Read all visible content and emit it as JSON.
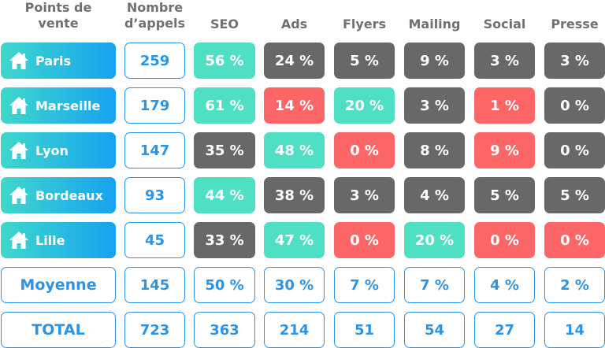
{
  "headers": [
    "Points de\nvente",
    "Nombre\nd’appels",
    "SEO",
    "Ads",
    "Flyers",
    "Mailing",
    "Social",
    "Presse"
  ],
  "colors": {
    "gray": "#686868",
    "green": "#4fe0c3",
    "red": "#fd6667",
    "blue": "#2c94e6",
    "header_text": "#707070",
    "city_gradient_start": "#3ed8cc",
    "city_gradient_end": "#17a2f0"
  },
  "city_icon": "home-icon",
  "rows": [
    {
      "city": "Paris",
      "calls": "259",
      "cells": [
        {
          "v": "56 %",
          "c": "green"
        },
        {
          "v": "24 %",
          "c": "gray"
        },
        {
          "v": "5 %",
          "c": "gray"
        },
        {
          "v": "9 %",
          "c": "gray"
        },
        {
          "v": "3 %",
          "c": "gray"
        },
        {
          "v": "3 %",
          "c": "gray"
        }
      ]
    },
    {
      "city": "Marseille",
      "calls": "179",
      "cells": [
        {
          "v": "61 %",
          "c": "green"
        },
        {
          "v": "14 %",
          "c": "red"
        },
        {
          "v": "20 %",
          "c": "green"
        },
        {
          "v": "3 %",
          "c": "gray"
        },
        {
          "v": "1 %",
          "c": "red"
        },
        {
          "v": "0 %",
          "c": "gray"
        }
      ]
    },
    {
      "city": "Lyon",
      "calls": "147",
      "cells": [
        {
          "v": "35 %",
          "c": "gray"
        },
        {
          "v": "48 %",
          "c": "green"
        },
        {
          "v": "0 %",
          "c": "red"
        },
        {
          "v": "8 %",
          "c": "gray"
        },
        {
          "v": "9 %",
          "c": "red"
        },
        {
          "v": "0 %",
          "c": "gray"
        }
      ]
    },
    {
      "city": "Bordeaux",
      "calls": "93",
      "cells": [
        {
          "v": "44 %",
          "c": "green"
        },
        {
          "v": "38 %",
          "c": "gray"
        },
        {
          "v": "3 %",
          "c": "gray"
        },
        {
          "v": "4 %",
          "c": "gray"
        },
        {
          "v": "5 %",
          "c": "gray"
        },
        {
          "v": "5 %",
          "c": "gray"
        }
      ]
    },
    {
      "city": "Lille",
      "calls": "45",
      "cells": [
        {
          "v": "33 %",
          "c": "gray"
        },
        {
          "v": "47 %",
          "c": "green"
        },
        {
          "v": "0 %",
          "c": "red"
        },
        {
          "v": "20 %",
          "c": "green"
        },
        {
          "v": "0 %",
          "c": "red"
        },
        {
          "v": "0 %",
          "c": "red"
        }
      ]
    }
  ],
  "summary": [
    {
      "label": "Moyenne",
      "values": [
        "145",
        "50 %",
        "30 %",
        "7 %",
        "7 %",
        "4 %",
        "2 %"
      ]
    },
    {
      "label": "TOTAL",
      "values": [
        "723",
        "363",
        "214",
        "51",
        "54",
        "27",
        "14"
      ]
    }
  ]
}
